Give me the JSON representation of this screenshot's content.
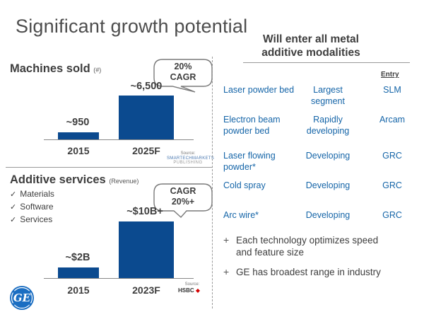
{
  "title": "Significant growth potential",
  "machines": {
    "heading": "Machines sold",
    "unit": "(#)",
    "bars": [
      {
        "year": "2015",
        "label": "~950",
        "value": 950
      },
      {
        "year": "2025F",
        "label": "~6,500",
        "value": 6500
      }
    ],
    "cagr": [
      "20%",
      "CAGR"
    ],
    "source_label": "Source:",
    "source_name": [
      "SMARTECHMARKETS",
      "PUBLISHING"
    ]
  },
  "services": {
    "heading": "Additive services",
    "unit": "(Revenue)",
    "items": [
      "Materials",
      "Software",
      "Services"
    ],
    "bars": [
      {
        "year": "2015",
        "label": "~$2B",
        "value": 2
      },
      {
        "year": "2023F",
        "label": "~$10B+",
        "value": 10
      }
    ],
    "cagr": [
      "CAGR",
      "20%+"
    ],
    "source_label": "Source:",
    "source_name": "HSBC"
  },
  "right": {
    "heading": [
      "Will enter all metal",
      "additive modalities"
    ],
    "entry_header": "Entry",
    "rows": [
      {
        "tech": [
          "Laser powder bed"
        ],
        "status": [
          "Largest",
          "segment"
        ],
        "entry": "SLM"
      },
      {
        "tech": [
          "Electron beam",
          "powder bed"
        ],
        "status": [
          "Rapidly",
          "developing"
        ],
        "entry": "Arcam"
      },
      {
        "tech": [
          "Laser flowing",
          "powder*"
        ],
        "status": [
          "Developing"
        ],
        "entry": "GRC"
      },
      {
        "tech": [
          "Cold spray"
        ],
        "status": [
          "Developing"
        ],
        "entry": "GRC"
      },
      {
        "tech": [
          "Arc wire*"
        ],
        "status": [
          "Developing"
        ],
        "entry": "GRC"
      }
    ],
    "bullets": [
      [
        "Each technology optimizes speed",
        "and feature size"
      ],
      [
        "GE has broadest range in industry"
      ]
    ]
  },
  "logo": {
    "text": "GE",
    "color": "#1b6ec2"
  },
  "colors": {
    "bar": "#0b4a8f",
    "table_text": "#1565a8"
  }
}
